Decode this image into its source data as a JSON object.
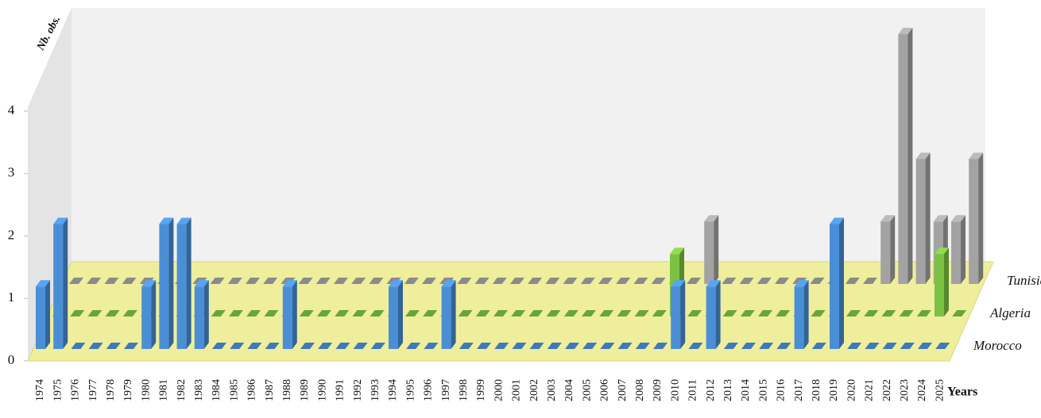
{
  "chart_data": {
    "type": "bar3d",
    "y_label": "Nb. obs.",
    "x_label": "Years",
    "categories": [
      "1974",
      "1975",
      "1976",
      "1977",
      "1978",
      "1979",
      "1980",
      "1981",
      "1982",
      "1983",
      "1984",
      "1985",
      "1986",
      "1987",
      "1988",
      "1989",
      "1990",
      "1991",
      "1992",
      "1993",
      "1994",
      "1995",
      "1996",
      "1997",
      "1998",
      "1999",
      "2000",
      "2001",
      "2002",
      "2003",
      "2004",
      "2005",
      "2006",
      "2007",
      "2008",
      "2009",
      "2010",
      "2011",
      "2012",
      "2013",
      "2014",
      "2015",
      "2016",
      "2017",
      "2018",
      "2019",
      "2020",
      "2021",
      "2022",
      "2023",
      "2024",
      "2025"
    ],
    "series": [
      {
        "name": "Morocco",
        "color": "#4a8fd6",
        "values": [
          1,
          2,
          0,
          0,
          0,
          0,
          1,
          2,
          2,
          1,
          0,
          0,
          0,
          0,
          1,
          0,
          0,
          0,
          0,
          0,
          1,
          0,
          0,
          1,
          0,
          0,
          0,
          0,
          0,
          0,
          0,
          0,
          0,
          0,
          0,
          0,
          1,
          0,
          1,
          0,
          0,
          0,
          0,
          1,
          0,
          2,
          0,
          0,
          0,
          0,
          0,
          0
        ]
      },
      {
        "name": "Algeria",
        "color": "#7cc242",
        "values": [
          0,
          0,
          0,
          0,
          0,
          0,
          0,
          0,
          0,
          0,
          0,
          0,
          0,
          0,
          0,
          0,
          0,
          0,
          0,
          0,
          0,
          0,
          0,
          0,
          0,
          0,
          0,
          0,
          0,
          0,
          0,
          0,
          0,
          0,
          0,
          1,
          0,
          0,
          0,
          0,
          0,
          0,
          0,
          0,
          0,
          0,
          0,
          0,
          0,
          0,
          1,
          0
        ]
      },
      {
        "name": "Tunisia",
        "color": "#a3a3a3",
        "values": [
          0,
          0,
          0,
          0,
          0,
          0,
          0,
          0,
          0,
          0,
          0,
          0,
          0,
          0,
          0,
          0,
          0,
          0,
          0,
          0,
          0,
          0,
          0,
          0,
          0,
          0,
          0,
          0,
          0,
          0,
          0,
          0,
          0,
          0,
          0,
          0,
          1,
          0,
          0,
          0,
          0,
          0,
          0,
          0,
          0,
          0,
          1,
          4,
          2,
          1,
          1,
          2
        ]
      }
    ],
    "ylim": [
      0,
      4
    ],
    "yticks": [
      0,
      1,
      2,
      3,
      4
    ]
  }
}
